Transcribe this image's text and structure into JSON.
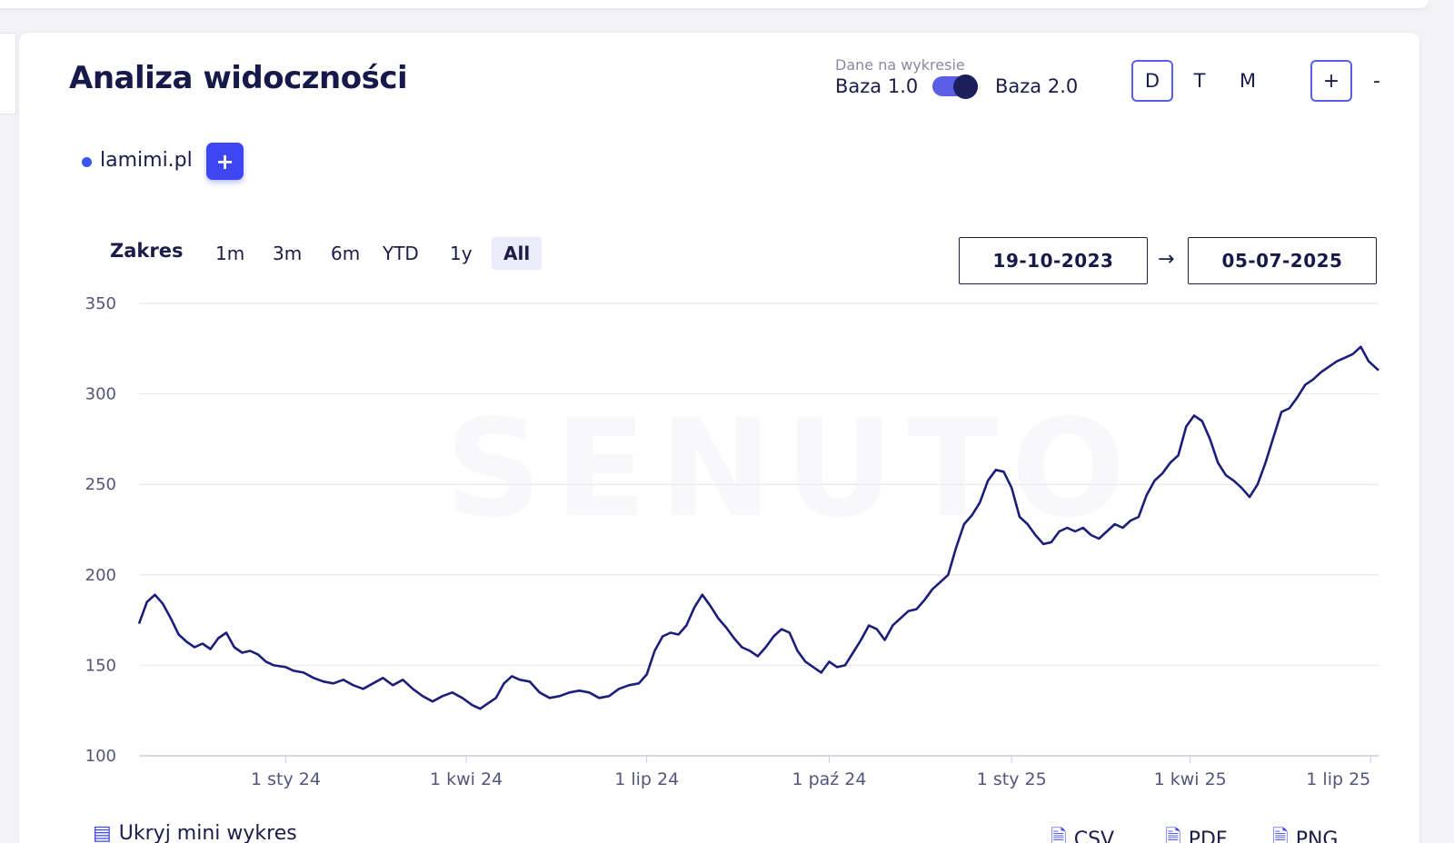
{
  "header": {
    "title": "Analiza widoczności",
    "data_on_chart_label": "Dane na wykresie",
    "base_left": "Baza 1.0",
    "base_right": "Baza 2.0",
    "periods": [
      "D",
      "T",
      "M"
    ],
    "active_period": "D",
    "zoom_in": "+",
    "zoom_out": "-"
  },
  "legend": {
    "domain": "lamimi.pl",
    "color": "#3a55f5",
    "add_label": "+"
  },
  "range": {
    "label": "Zakres",
    "options": [
      "1m",
      "3m",
      "6m",
      "YTD",
      "1y",
      "All"
    ],
    "active": "All",
    "date_from": "19-10-2023",
    "arrow": "→",
    "date_to": "05-07-2025"
  },
  "footer": {
    "mini_chart": "Ukryj mini wykres",
    "csv": "CSV",
    "pdf": "PDF",
    "png": "PNG"
  },
  "chart_data": {
    "type": "line",
    "x_start": "2023-10-19",
    "x_end": "2025-07-05",
    "ylim": [
      100,
      350
    ],
    "yticks": [
      100,
      150,
      200,
      250,
      300,
      350
    ],
    "xtick_labels": [
      "1 sty 24",
      "1 kwi 24",
      "1 lip 24",
      "1 paź 24",
      "1 sty 25",
      "1 kwi 25",
      "1 lip 25"
    ],
    "xtick_dates": [
      "2024-01-01",
      "2024-04-01",
      "2024-07-01",
      "2024-10-01",
      "2025-01-01",
      "2025-04-01",
      "2025-07-01"
    ],
    "grid": true,
    "line_color": "#1b1f7a",
    "series": [
      {
        "points": [
          [
            "2023-10-19",
            173
          ],
          [
            "2023-10-23",
            185
          ],
          [
            "2023-10-27",
            189
          ],
          [
            "2023-10-31",
            184
          ],
          [
            "2023-11-04",
            176
          ],
          [
            "2023-11-08",
            167
          ],
          [
            "2023-11-12",
            163
          ],
          [
            "2023-11-16",
            160
          ],
          [
            "2023-11-20",
            162
          ],
          [
            "2023-11-24",
            159
          ],
          [
            "2023-11-28",
            165
          ],
          [
            "2023-12-02",
            168
          ],
          [
            "2023-12-06",
            160
          ],
          [
            "2023-12-10",
            157
          ],
          [
            "2023-12-14",
            158
          ],
          [
            "2023-12-18",
            156
          ],
          [
            "2023-12-22",
            152
          ],
          [
            "2023-12-26",
            150
          ],
          [
            "2024-01-01",
            149
          ],
          [
            "2024-01-05",
            147
          ],
          [
            "2024-01-10",
            146
          ],
          [
            "2024-01-15",
            143
          ],
          [
            "2024-01-20",
            141
          ],
          [
            "2024-01-25",
            140
          ],
          [
            "2024-01-30",
            142
          ],
          [
            "2024-02-04",
            139
          ],
          [
            "2024-02-09",
            137
          ],
          [
            "2024-02-14",
            140
          ],
          [
            "2024-02-19",
            143
          ],
          [
            "2024-02-24",
            139
          ],
          [
            "2024-02-29",
            142
          ],
          [
            "2024-03-05",
            137
          ],
          [
            "2024-03-10",
            133
          ],
          [
            "2024-03-15",
            130
          ],
          [
            "2024-03-20",
            133
          ],
          [
            "2024-03-25",
            135
          ],
          [
            "2024-03-30",
            132
          ],
          [
            "2024-04-04",
            128
          ],
          [
            "2024-04-08",
            126
          ],
          [
            "2024-04-12",
            129
          ],
          [
            "2024-04-16",
            132
          ],
          [
            "2024-04-20",
            140
          ],
          [
            "2024-04-24",
            144
          ],
          [
            "2024-04-28",
            142
          ],
          [
            "2024-05-03",
            141
          ],
          [
            "2024-05-08",
            135
          ],
          [
            "2024-05-13",
            132
          ],
          [
            "2024-05-18",
            133
          ],
          [
            "2024-05-23",
            135
          ],
          [
            "2024-05-28",
            136
          ],
          [
            "2024-06-02",
            135
          ],
          [
            "2024-06-07",
            132
          ],
          [
            "2024-06-12",
            133
          ],
          [
            "2024-06-17",
            137
          ],
          [
            "2024-06-22",
            139
          ],
          [
            "2024-06-27",
            140
          ],
          [
            "2024-07-01",
            145
          ],
          [
            "2024-07-05",
            158
          ],
          [
            "2024-07-09",
            166
          ],
          [
            "2024-07-13",
            168
          ],
          [
            "2024-07-17",
            167
          ],
          [
            "2024-07-21",
            172
          ],
          [
            "2024-07-25",
            182
          ],
          [
            "2024-07-29",
            189
          ],
          [
            "2024-08-02",
            183
          ],
          [
            "2024-08-06",
            176
          ],
          [
            "2024-08-10",
            171
          ],
          [
            "2024-08-14",
            165
          ],
          [
            "2024-08-18",
            160
          ],
          [
            "2024-08-22",
            158
          ],
          [
            "2024-08-26",
            155
          ],
          [
            "2024-08-30",
            160
          ],
          [
            "2024-09-03",
            166
          ],
          [
            "2024-09-07",
            170
          ],
          [
            "2024-09-11",
            168
          ],
          [
            "2024-09-15",
            158
          ],
          [
            "2024-09-19",
            152
          ],
          [
            "2024-09-23",
            149
          ],
          [
            "2024-09-27",
            146
          ],
          [
            "2024-10-01",
            152
          ],
          [
            "2024-10-05",
            149
          ],
          [
            "2024-10-09",
            150
          ],
          [
            "2024-10-13",
            157
          ],
          [
            "2024-10-17",
            164
          ],
          [
            "2024-10-21",
            172
          ],
          [
            "2024-10-25",
            170
          ],
          [
            "2024-10-29",
            164
          ],
          [
            "2024-11-02",
            172
          ],
          [
            "2024-11-06",
            176
          ],
          [
            "2024-11-10",
            180
          ],
          [
            "2024-11-14",
            181
          ],
          [
            "2024-11-18",
            186
          ],
          [
            "2024-11-22",
            192
          ],
          [
            "2024-11-26",
            196
          ],
          [
            "2024-11-30",
            200
          ],
          [
            "2024-12-04",
            215
          ],
          [
            "2024-12-08",
            228
          ],
          [
            "2024-12-12",
            233
          ],
          [
            "2024-12-16",
            240
          ],
          [
            "2024-12-20",
            252
          ],
          [
            "2024-12-24",
            258
          ],
          [
            "2024-12-28",
            257
          ],
          [
            "2025-01-01",
            248
          ],
          [
            "2025-01-05",
            232
          ],
          [
            "2025-01-09",
            228
          ],
          [
            "2025-01-13",
            222
          ],
          [
            "2025-01-17",
            217
          ],
          [
            "2025-01-21",
            218
          ],
          [
            "2025-01-25",
            224
          ],
          [
            "2025-01-29",
            226
          ],
          [
            "2025-02-02",
            224
          ],
          [
            "2025-02-06",
            226
          ],
          [
            "2025-02-10",
            222
          ],
          [
            "2025-02-14",
            220
          ],
          [
            "2025-02-18",
            224
          ],
          [
            "2025-02-22",
            228
          ],
          [
            "2025-02-26",
            226
          ],
          [
            "2025-03-02",
            230
          ],
          [
            "2025-03-06",
            232
          ],
          [
            "2025-03-10",
            244
          ],
          [
            "2025-03-14",
            252
          ],
          [
            "2025-03-18",
            256
          ],
          [
            "2025-03-22",
            262
          ],
          [
            "2025-03-26",
            266
          ],
          [
            "2025-03-30",
            282
          ],
          [
            "2025-04-03",
            288
          ],
          [
            "2025-04-07",
            285
          ],
          [
            "2025-04-11",
            275
          ],
          [
            "2025-04-15",
            262
          ],
          [
            "2025-04-19",
            255
          ],
          [
            "2025-04-23",
            252
          ],
          [
            "2025-04-27",
            248
          ],
          [
            "2025-05-01",
            243
          ],
          [
            "2025-05-05",
            250
          ],
          [
            "2025-05-09",
            262
          ],
          [
            "2025-05-13",
            276
          ],
          [
            "2025-05-17",
            290
          ],
          [
            "2025-05-21",
            292
          ],
          [
            "2025-05-25",
            298
          ],
          [
            "2025-05-29",
            305
          ],
          [
            "2025-06-02",
            308
          ],
          [
            "2025-06-06",
            312
          ],
          [
            "2025-06-10",
            315
          ],
          [
            "2025-06-14",
            318
          ],
          [
            "2025-06-18",
            320
          ],
          [
            "2025-06-22",
            322
          ],
          [
            "2025-06-26",
            326
          ],
          [
            "2025-06-30",
            318
          ],
          [
            "2025-07-05",
            313
          ]
        ]
      }
    ]
  }
}
